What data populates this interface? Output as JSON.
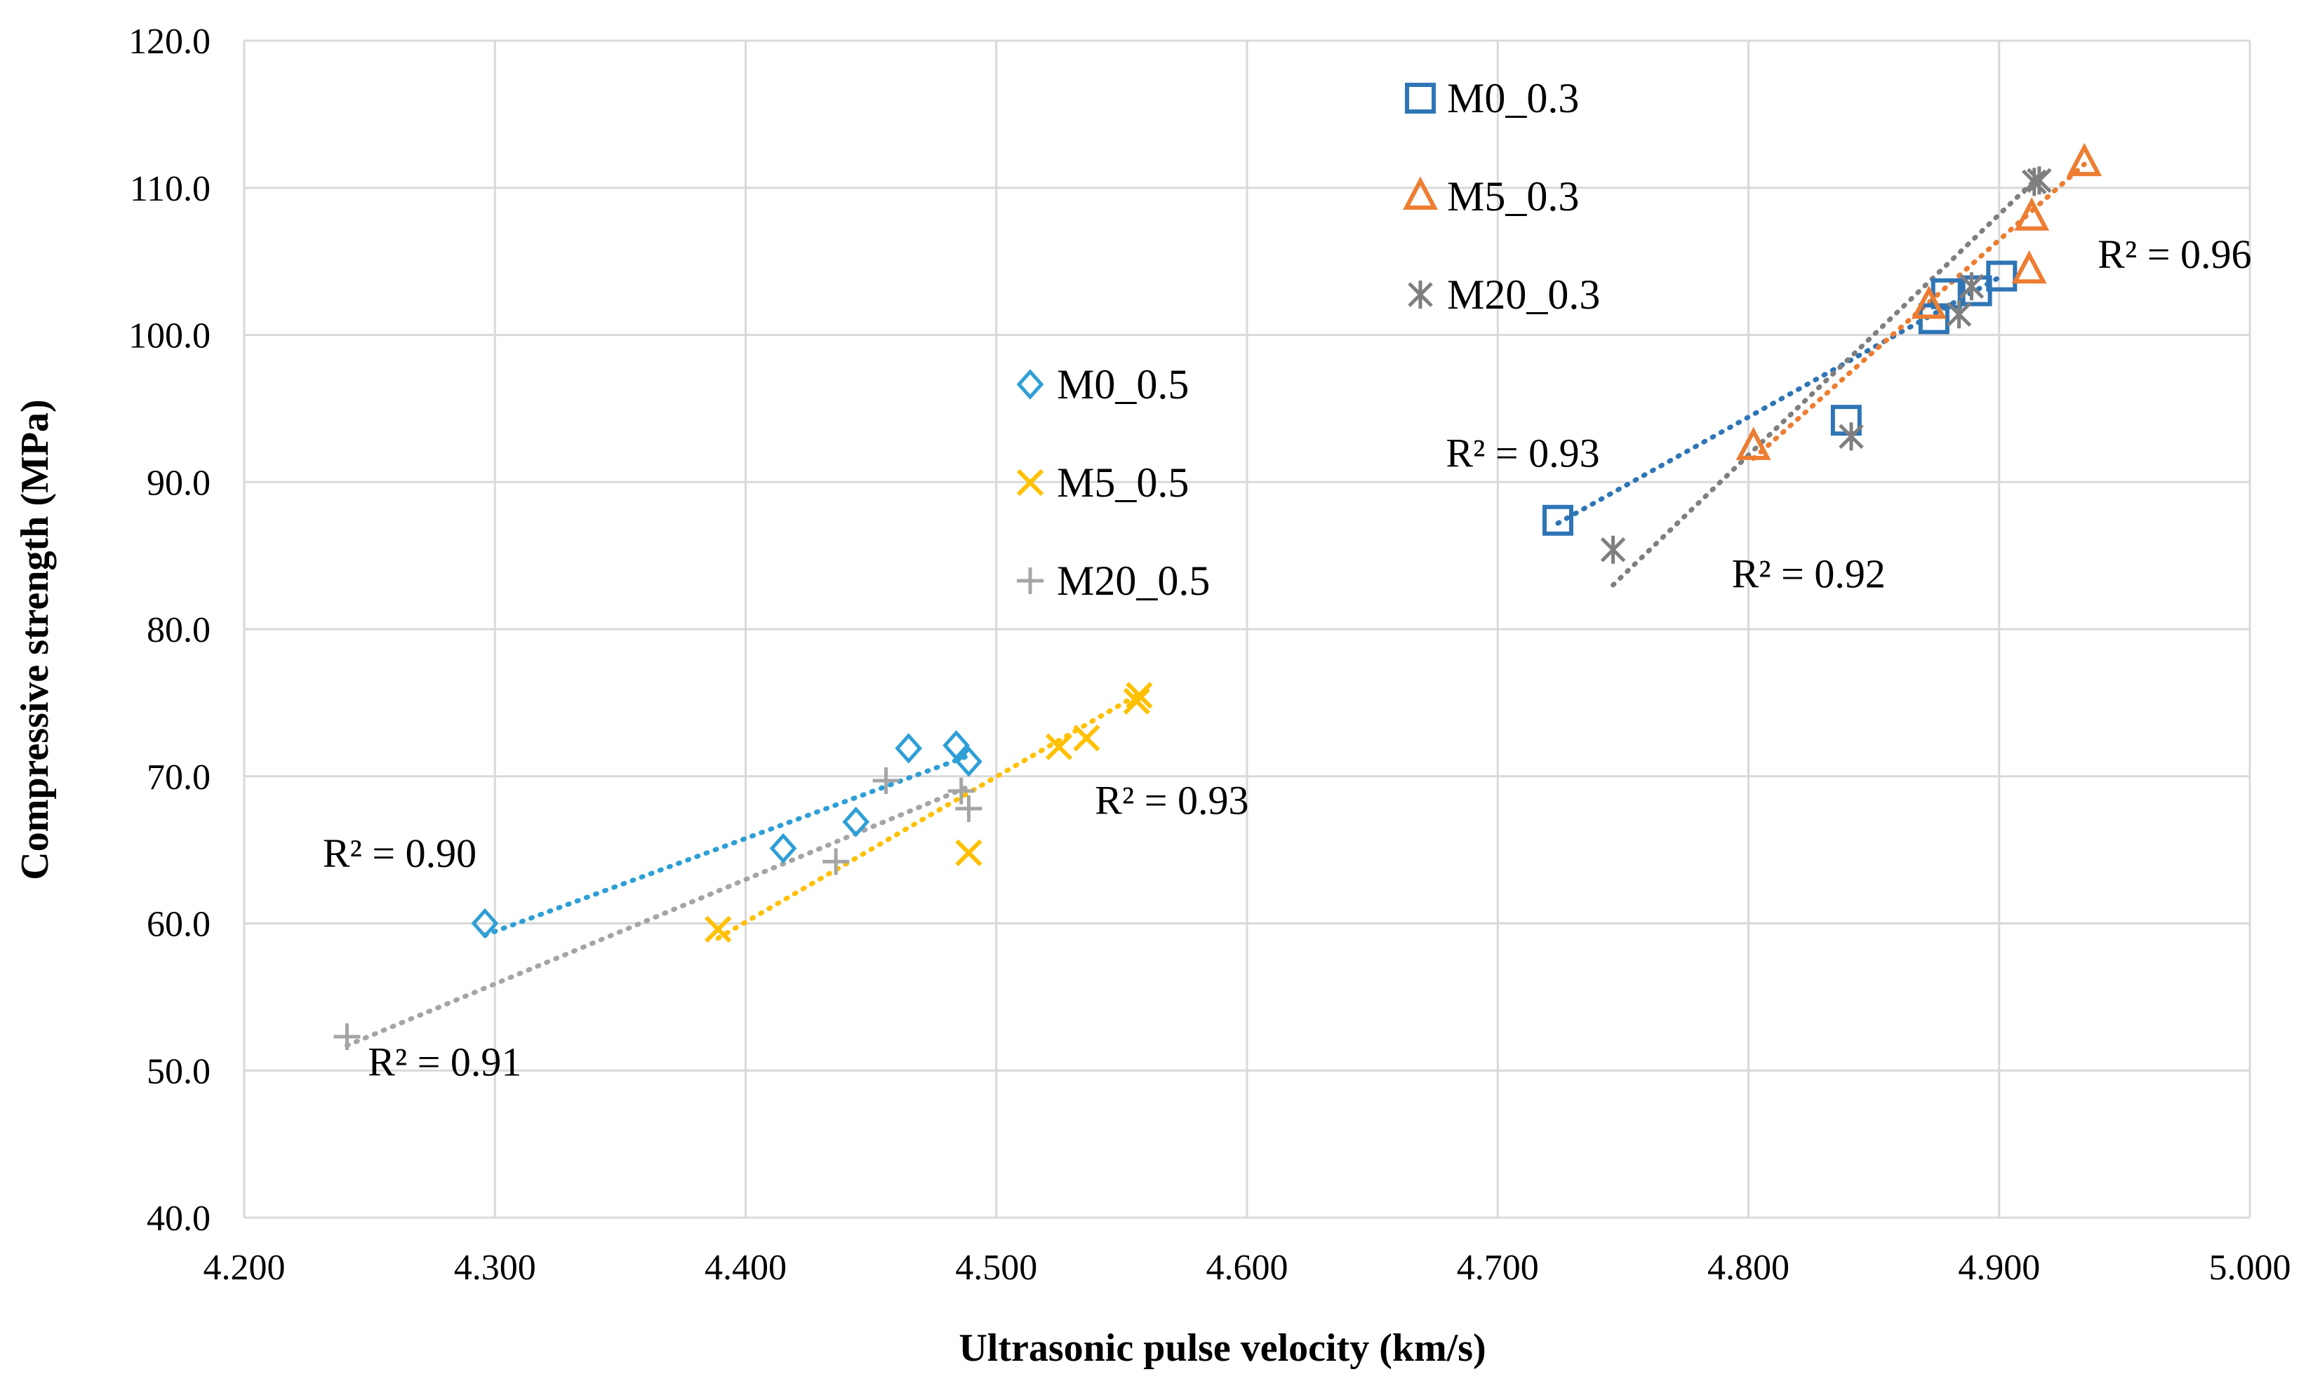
{
  "chart_data": {
    "type": "scatter",
    "title": "",
    "xlabel": "Ultrasonic pulse velocity (km/s)",
    "ylabel": "Compressive strength (MPa)",
    "xlim": [
      4.2,
      5.0
    ],
    "ylim": [
      40.0,
      120.0
    ],
    "x_ticks": [
      4.2,
      4.3,
      4.4,
      4.5,
      4.6,
      4.7,
      4.8,
      4.9,
      5.0
    ],
    "x_tick_labels": [
      "4.200",
      "4.300",
      "4.400",
      "4.500",
      "4.600",
      "4.700",
      "4.800",
      "4.900",
      "5.000"
    ],
    "y_ticks": [
      40,
      50,
      60,
      70,
      80,
      90,
      100,
      110,
      120
    ],
    "y_tick_labels": [
      "40.0",
      "50.0",
      "60.0",
      "70.0",
      "80.0",
      "90.0",
      "100.0",
      "110.0",
      "120.0"
    ],
    "grid": true,
    "series": [
      {
        "name": "M0_0.3",
        "marker": "square",
        "color": "#2E75B6",
        "points": [
          [
            4.724,
            87.4
          ],
          [
            4.839,
            94.2
          ],
          [
            4.874,
            101.1
          ],
          [
            4.879,
            102.8
          ],
          [
            4.891,
            103.0
          ],
          [
            4.901,
            104.0
          ]
        ],
        "trendline": [
          [
            4.724,
            87.2
          ],
          [
            4.901,
            104.0
          ]
        ]
      },
      {
        "name": "M5_0.3",
        "marker": "triangle",
        "color": "#ED7D31",
        "points": [
          [
            4.802,
            92.4
          ],
          [
            4.872,
            102.0
          ],
          [
            4.912,
            104.4
          ],
          [
            4.913,
            108.0
          ],
          [
            4.934,
            111.7
          ]
        ],
        "trendline": [
          [
            4.802,
            91.6
          ],
          [
            4.934,
            111.6
          ]
        ]
      },
      {
        "name": "M20_0.3",
        "marker": "star",
        "color": "#7F7F7F",
        "points": [
          [
            4.746,
            85.4
          ],
          [
            4.841,
            93.1
          ],
          [
            4.884,
            101.4
          ],
          [
            4.889,
            103.3
          ],
          [
            4.914,
            110.4
          ],
          [
            4.916,
            110.5
          ]
        ],
        "trendline": [
          [
            4.746,
            83.0
          ],
          [
            4.916,
            110.8
          ]
        ]
      },
      {
        "name": "M0_0.5",
        "marker": "diamond",
        "color": "#2E9FD6",
        "points": [
          [
            4.296,
            60.0
          ],
          [
            4.415,
            65.1
          ],
          [
            4.444,
            66.9
          ],
          [
            4.465,
            71.9
          ],
          [
            4.484,
            72.1
          ],
          [
            4.489,
            71.0
          ]
        ],
        "trendline": [
          [
            4.296,
            59.2
          ],
          [
            4.489,
            71.4
          ]
        ]
      },
      {
        "name": "M5_0.5",
        "marker": "x",
        "color": "#FFC000",
        "points": [
          [
            4.389,
            59.6
          ],
          [
            4.489,
            64.8
          ],
          [
            4.525,
            72.0
          ],
          [
            4.536,
            72.6
          ],
          [
            4.556,
            75.1
          ],
          [
            4.557,
            75.5
          ]
        ],
        "trendline": [
          [
            4.389,
            59.0
          ],
          [
            4.557,
            75.6
          ]
        ]
      },
      {
        "name": "M20_0.5",
        "marker": "plus",
        "color": "#A5A5A5",
        "points": [
          [
            4.241,
            52.3
          ],
          [
            4.436,
            64.2
          ],
          [
            4.456,
            69.7
          ],
          [
            4.486,
            69.0
          ],
          [
            4.489,
            67.8
          ]
        ],
        "trendline": [
          [
            4.241,
            51.7
          ],
          [
            4.489,
            69.3
          ]
        ]
      }
    ],
    "annotations": [
      {
        "text": "R² = 0.93",
        "x": 4.71,
        "y": 92.0
      },
      {
        "text": "R² = 0.96",
        "x": 4.97,
        "y": 105.5
      },
      {
        "text": "R² = 0.92",
        "x": 4.824,
        "y": 83.8
      },
      {
        "text": "R² = 0.90",
        "x": 4.262,
        "y": 64.8
      },
      {
        "text": "R² = 0.93",
        "x": 4.57,
        "y": 68.4
      },
      {
        "text": "R² = 0.91",
        "x": 4.28,
        "y": 50.6
      }
    ],
    "legends": [
      {
        "name": "legend-upper",
        "placement": "top-right",
        "series": [
          "M0_0.3",
          "M5_0.3",
          "M20_0.3"
        ]
      },
      {
        "name": "legend-middle",
        "placement": "center",
        "series": [
          "M0_0.5",
          "M5_0.5",
          "M20_0.5"
        ]
      }
    ]
  }
}
